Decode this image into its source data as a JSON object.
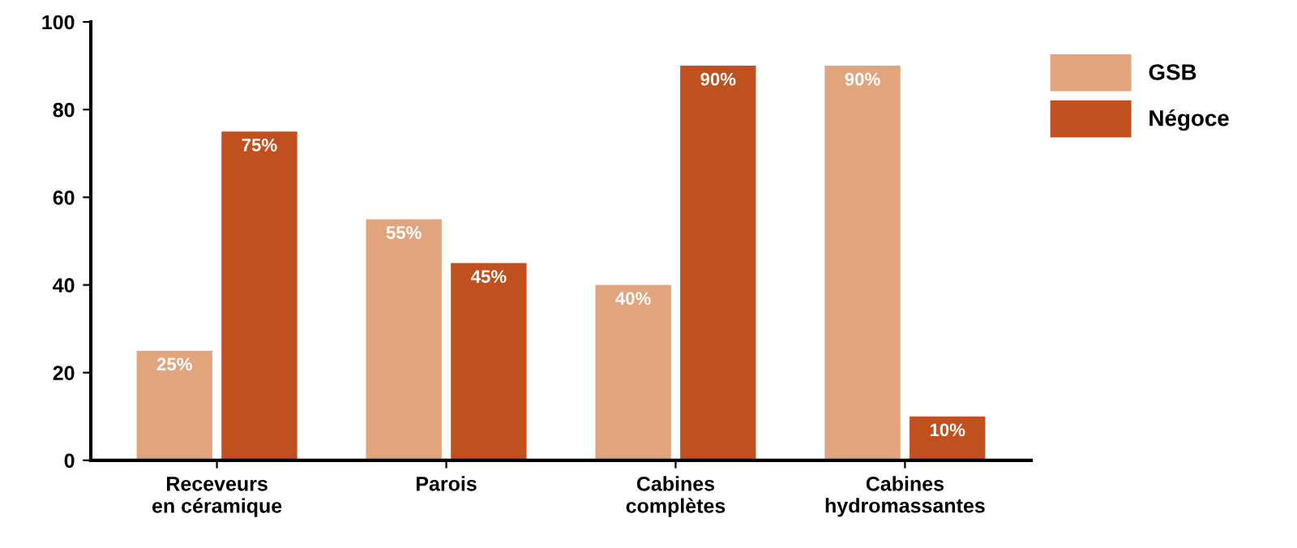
{
  "chart_data": {
    "type": "bar",
    "categories": [
      "Receveurs\nen céramique",
      "Parois",
      "Cabines\ncomplètes",
      "Cabines\nhydromassantes"
    ],
    "series": [
      {
        "name": "GSB",
        "color": "#e2a47c",
        "values": [
          25,
          55,
          40,
          90
        ],
        "value_labels": [
          "25%",
          "55%",
          "40%",
          "90%"
        ]
      },
      {
        "name": "Négoce",
        "color": "#c1501f",
        "values": [
          75,
          45,
          90,
          10
        ],
        "value_labels": [
          "75%",
          "45%",
          "90%",
          "10%"
        ]
      }
    ],
    "ylim": [
      0,
      100
    ],
    "yticks": [
      0,
      20,
      40,
      60,
      80,
      100
    ],
    "grid": false,
    "legend": "right"
  }
}
